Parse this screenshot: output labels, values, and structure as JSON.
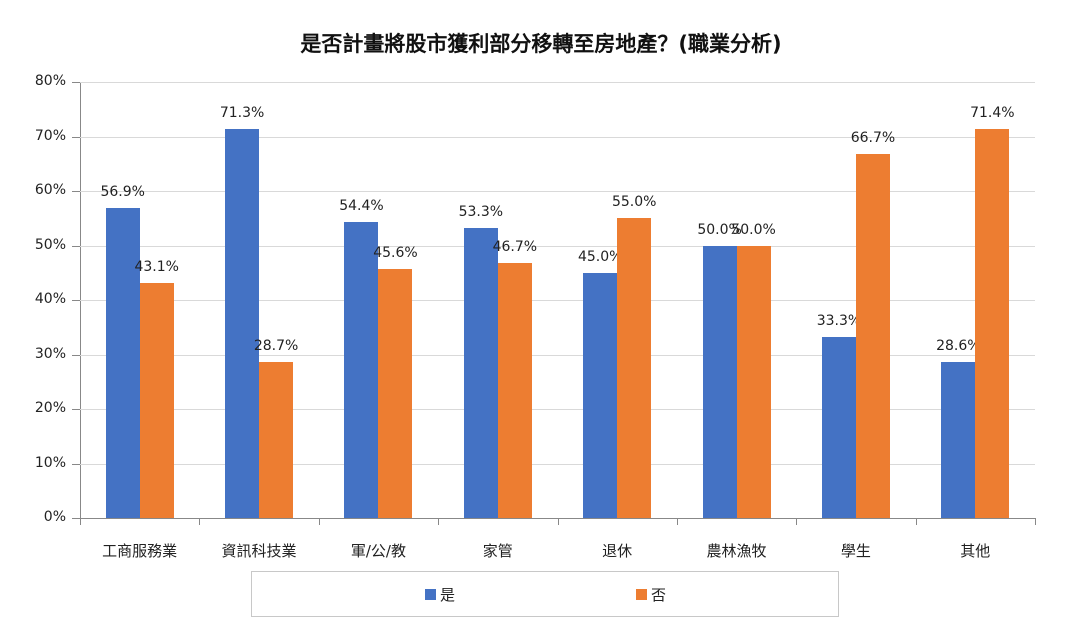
{
  "chart_data": {
    "type": "bar",
    "title": "是否計畫將股市獲利部分移轉至房地產？(職業分析)",
    "xlabel": "",
    "ylabel": "",
    "ylim": [
      0,
      80
    ],
    "yticks": [
      "0%",
      "10%",
      "20%",
      "30%",
      "40%",
      "50%",
      "60%",
      "70%",
      "80%"
    ],
    "grid": true,
    "legend_position": "bottom",
    "categories": [
      "工商服務業",
      "資訊科技業",
      "軍/公/教",
      "家管",
      "退休",
      "農林漁牧",
      "學生",
      "其他"
    ],
    "series": [
      {
        "name": "是",
        "color": "#4472C4",
        "values": [
          56.9,
          71.3,
          54.4,
          53.3,
          45.0,
          50.0,
          33.3,
          28.6
        ],
        "labels": [
          "56.9%",
          "71.3%",
          "54.4%",
          "53.3%",
          "45.0%",
          "50.0%",
          "33.3%",
          "28.6%"
        ]
      },
      {
        "name": "否",
        "color": "#ED7D31",
        "values": [
          43.1,
          28.7,
          45.6,
          46.7,
          55.0,
          50.0,
          66.7,
          71.4
        ],
        "labels": [
          "43.1%",
          "28.7%",
          "45.6%",
          "46.7%",
          "55.0%",
          "50.0%",
          "66.7%",
          "71.4%"
        ]
      }
    ]
  }
}
